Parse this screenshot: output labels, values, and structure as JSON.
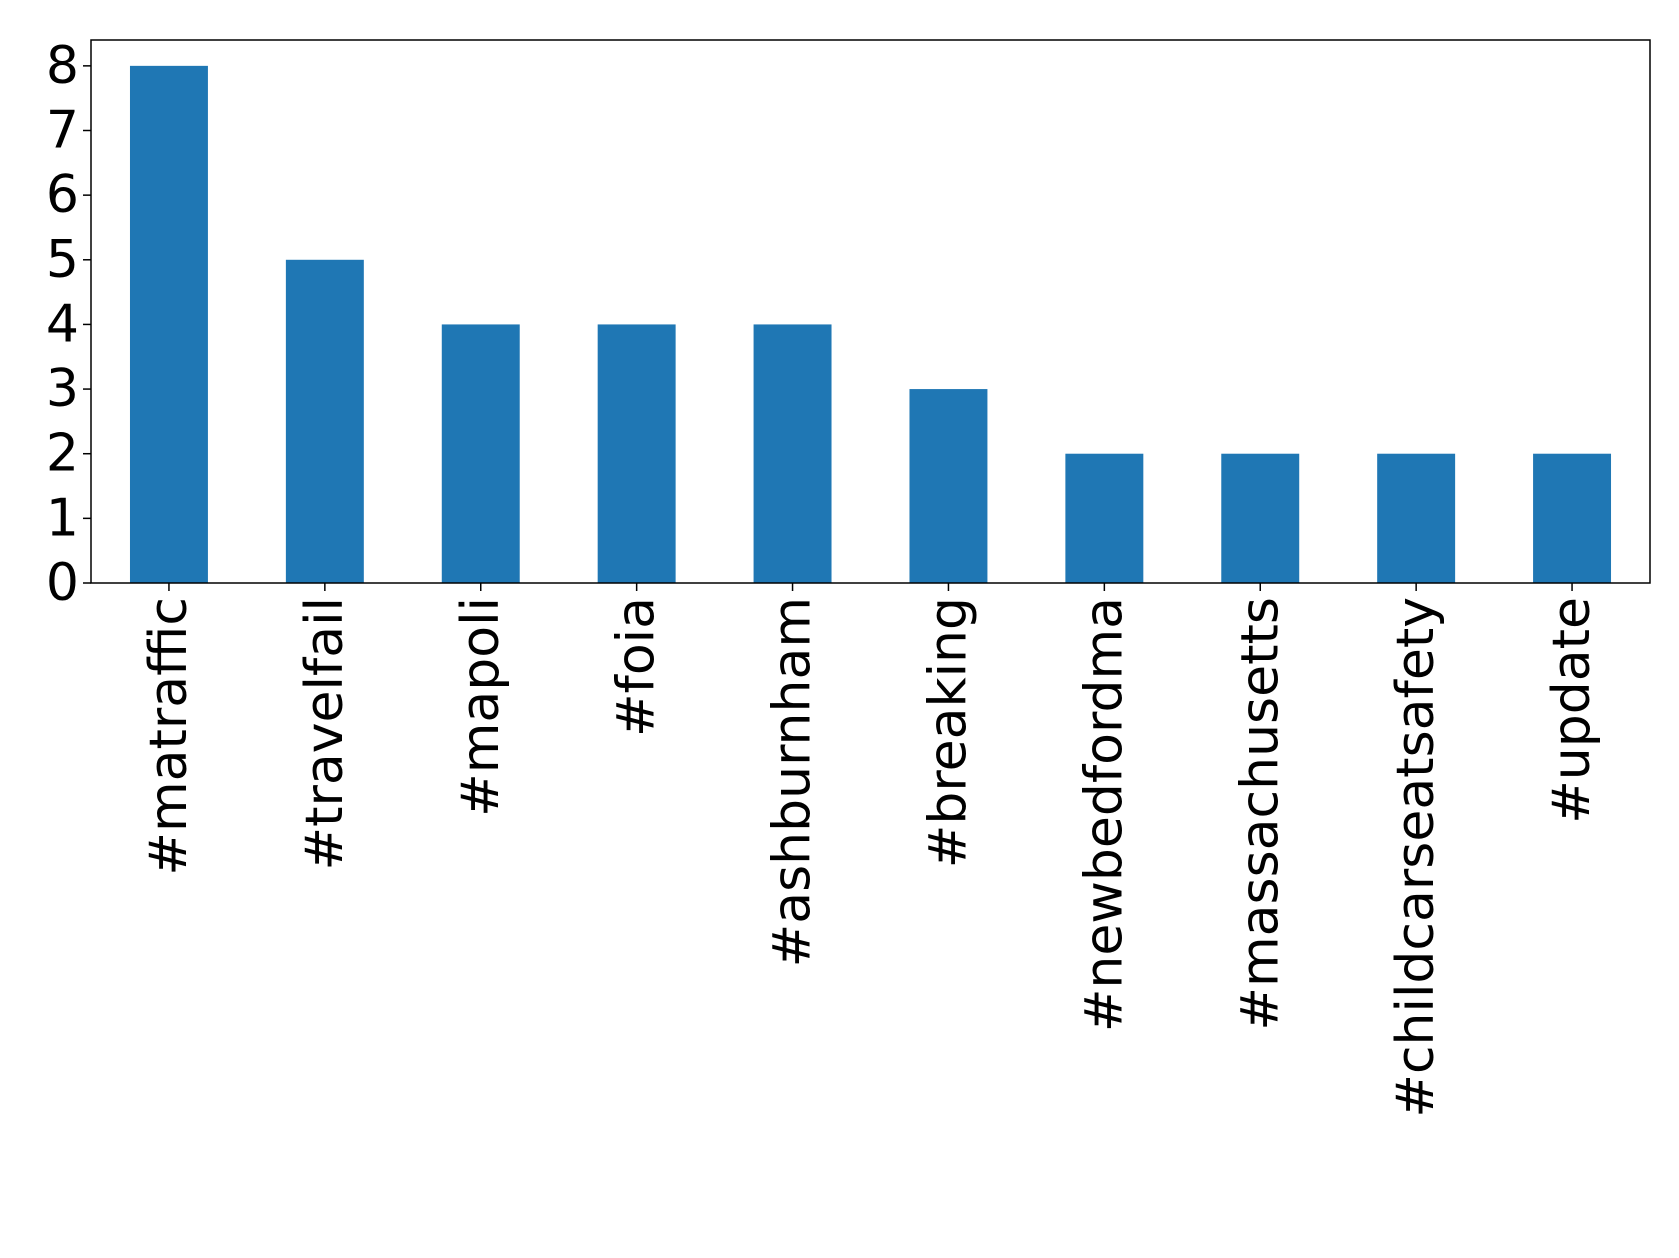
{
  "chart_data": {
    "type": "bar",
    "title": "",
    "xlabel": "",
    "ylabel": "",
    "categories": [
      "#matraffic",
      "#travelfail",
      "#mapoli",
      "#foia",
      "#ashburnham",
      "#breaking",
      "#newbedfordma",
      "#massachusetts",
      "#childcarseatsafety",
      "#update"
    ],
    "values": [
      8,
      5,
      4,
      4,
      4,
      3,
      2,
      2,
      2,
      2
    ],
    "ylim": [
      0,
      8.4
    ],
    "yticks": [
      0,
      1,
      2,
      3,
      4,
      5,
      6,
      7,
      8
    ],
    "grid": false,
    "legend": "none",
    "bar_color": "#1f77b4"
  }
}
